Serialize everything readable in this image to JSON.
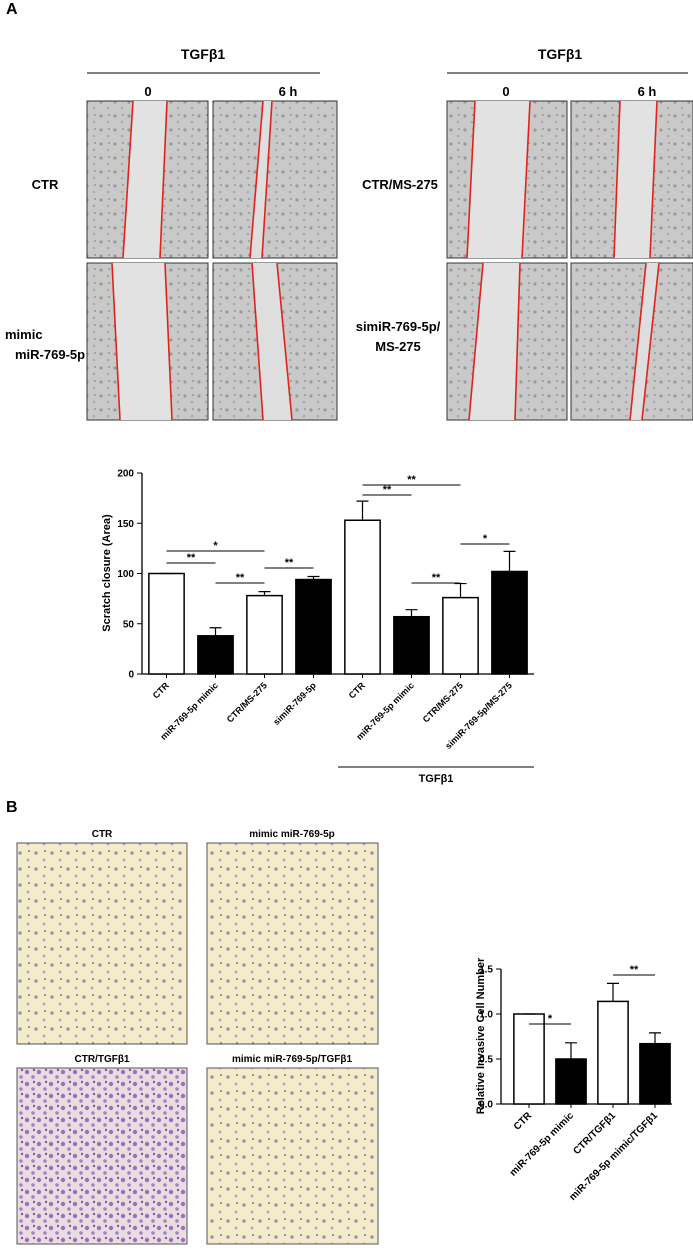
{
  "panel_a": {
    "label": "A",
    "left": {
      "header": "TGFβ1",
      "times": [
        "0",
        "6 h"
      ],
      "rows": [
        [
          "CTR"
        ],
        [
          "mimic",
          "miR-769-5p"
        ]
      ]
    },
    "right": {
      "header": "TGFβ1",
      "times": [
        "0",
        "6 h"
      ],
      "rows": [
        [
          "CTR/MS-275"
        ],
        [
          "simiR-769-5p/",
          "MS-275"
        ]
      ]
    }
  },
  "panel_b": {
    "label": "B",
    "images": [
      "CTR",
      "mimic miR-769-5p",
      "CTR/TGFβ1",
      "mimic miR-769-5p/TGFβ1"
    ]
  },
  "chart_data": [
    {
      "type": "bar",
      "y_label": "Scratch closure (Area)",
      "categories": [
        "CTR",
        "miR-769-5p mimic",
        "CTR/MS-275",
        "simiR-769-5p",
        "CTR",
        "miR-769-5p mimic",
        "CTR/MS-275",
        "simiR-769-5p/MS-275"
      ],
      "values": [
        100,
        38,
        78,
        94,
        153,
        57,
        76,
        102
      ],
      "errors": [
        0,
        8,
        4,
        3,
        19,
        7,
        14,
        20
      ],
      "colors": [
        "#ffffff",
        "#000000",
        "#ffffff",
        "#000000",
        "#ffffff",
        "#000000",
        "#ffffff",
        "#000000"
      ],
      "group_label": "TGFβ1",
      "annotations": [
        "*",
        "**",
        "**",
        "**",
        "**",
        "**",
        "**",
        "*"
      ],
      "ylim": [
        0,
        200
      ],
      "yticks": [
        0,
        50,
        100,
        150,
        200
      ]
    },
    {
      "type": "bar",
      "y_label": "Relative Invasive Cell Number",
      "categories": [
        "CTR",
        "miR-769-5p mimic",
        "CTR/TGFβ1",
        "miR-769-5p mimic/TGFβ1"
      ],
      "values": [
        1.0,
        0.5,
        1.14,
        0.67
      ],
      "errors": [
        0,
        0.18,
        0.2,
        0.12
      ],
      "colors": [
        "#ffffff",
        "#000000",
        "#ffffff",
        "#000000"
      ],
      "annotations": [
        "*",
        "**"
      ],
      "ylim": [
        0,
        1.5
      ],
      "yticks": [
        {
          "value": 0,
          "label": "0.0"
        },
        0.5,
        {
          "value": 1,
          "label": "1.0"
        },
        1.5
      ]
    }
  ]
}
